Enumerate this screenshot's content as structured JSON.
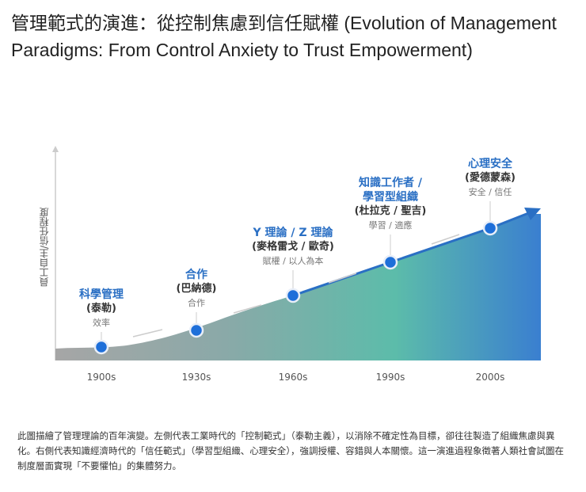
{
  "title": "管理範式的演進：從控制焦慮到信任賦權 (Evolution of Management Paradigms: From Control Anxiety to Trust Empowerment)",
  "y_axis_label": "員工自主/信任程度",
  "x_ticks": [
    "1900s",
    "1930s",
    "1960s",
    "1990s",
    "2000s"
  ],
  "milestones": [
    {
      "name": "科學管理",
      "who": "(泰勒)",
      "keywords": "效率"
    },
    {
      "name": "合作",
      "who": "(巴納德)",
      "keywords": "合作"
    },
    {
      "name": "Y 理論 / Z 理論",
      "who": "(麥格雷戈 / 歐奇)",
      "keywords": "賦權 / 以人為本"
    },
    {
      "name": "知識工作者 / 學習型組織",
      "who": "(杜拉克 / 聖吉)",
      "keywords": "學習 / 適應"
    },
    {
      "name": "心理安全",
      "who": "(愛德蒙森)",
      "keywords": "安全 / 信任"
    }
  ],
  "colors": {
    "accent": "#2a6fc4",
    "point": "#1e6fd9",
    "gray": "#9a9a9a",
    "teal": "#5cbcaa",
    "blue": "#3a7fd0"
  },
  "caption": "此圖描繪了管理理論的百年演變。左側代表工業時代的「控制範式」（泰勒主義），以消除不確定性為目標，卻往往製造了組織焦慮與異化。右側代表知識經濟時代的「信任範式」（學習型組織、心理安全），強調授權、容錯與人本關懷。這一演進過程象徵著人類社會試圖在制度層面實現「不要懼怕」的集體努力。"
}
